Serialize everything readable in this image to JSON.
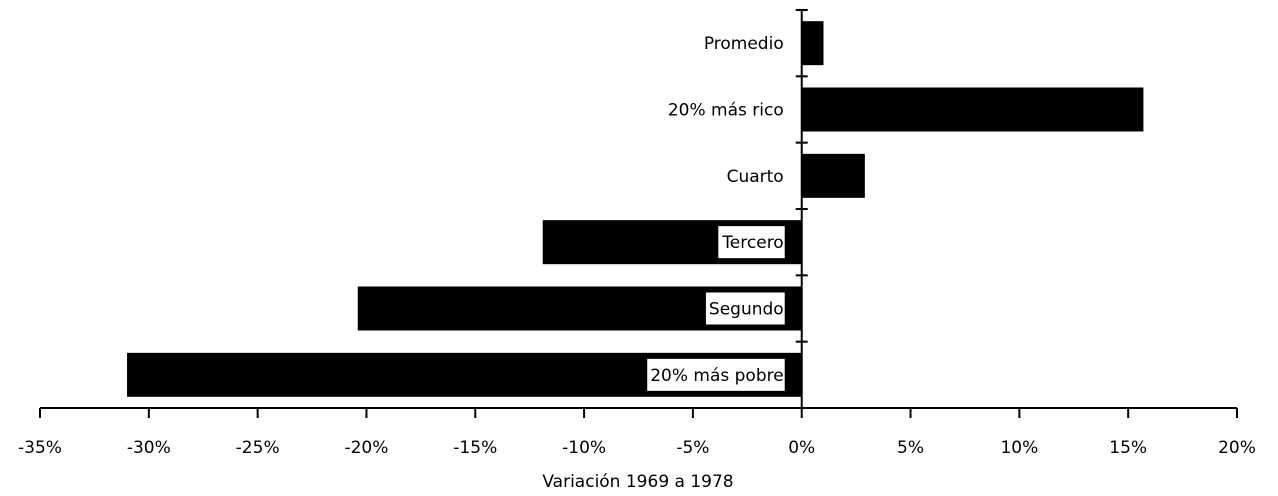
{
  "chart_data": {
    "type": "barh",
    "x_label": "Variación 1969 a 1978",
    "categories": [
      "20% más pobre",
      "Segundo",
      "Tercero",
      "Cuarto",
      "20% más rico",
      "Promedio"
    ],
    "values": [
      -31,
      -20.4,
      -11.9,
      2.9,
      15.7,
      1.0
    ],
    "color": "#000000",
    "xlim": [
      -35,
      20
    ],
    "xticks": [
      {
        "value": -35,
        "label": "-35%"
      },
      {
        "value": -30,
        "label": "-30%"
      },
      {
        "value": -25,
        "label": "-25%"
      },
      {
        "value": -20,
        "label": "-20%"
      },
      {
        "value": -15,
        "label": "-15%"
      },
      {
        "value": -10,
        "label": "-10%"
      },
      {
        "value": -5,
        "label": "-5%"
      },
      {
        "value": 0,
        "label": "0%"
      },
      {
        "value": 5,
        "label": "5%"
      },
      {
        "value": 10,
        "label": "10%"
      },
      {
        "value": 15,
        "label": "15%"
      },
      {
        "value": 20,
        "label": "20%"
      }
    ],
    "grid": false
  }
}
